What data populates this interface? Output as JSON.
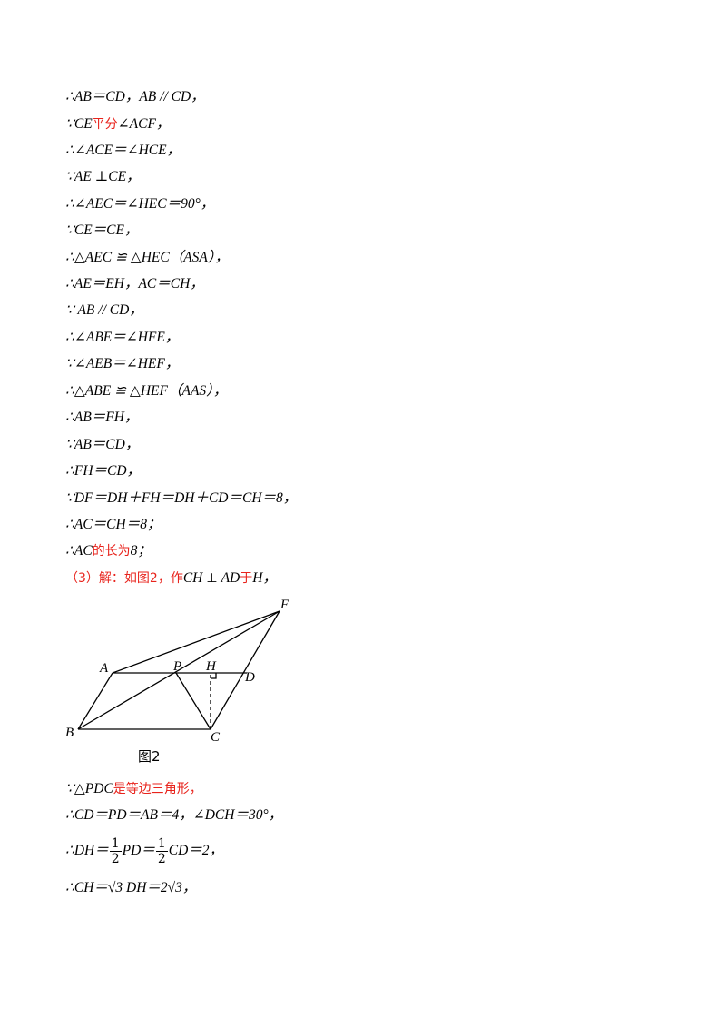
{
  "proof_lines": [
    {
      "parts": [
        "∴AB＝CD，AB // CD，"
      ]
    },
    {
      "parts": [
        "∵CE",
        "平分",
        "∠ACF，"
      ]
    },
    {
      "parts": [
        "∴∠ACE＝∠HCE，"
      ]
    },
    {
      "parts": [
        "∵AE ⊥CE，"
      ]
    },
    {
      "parts": [
        "∴∠AEC＝∠HEC＝90°，"
      ]
    },
    {
      "parts": [
        "∵CE＝CE，"
      ]
    },
    {
      "parts": [
        "∴△AEC ≌ △HEC（ASA），"
      ]
    },
    {
      "parts": [
        "∴AE＝EH，AC＝CH，"
      ]
    },
    {
      "parts": [
        "∵ AB // CD，"
      ]
    },
    {
      "parts": [
        "∴∠ABE＝∠HFE，"
      ]
    },
    {
      "parts": [
        "∵∠AEB＝∠HEF，"
      ]
    },
    {
      "parts": [
        "∴△ABE ≌ △HEF（AAS），"
      ]
    },
    {
      "parts": [
        "∴AB＝FH，"
      ]
    },
    {
      "parts": [
        "∵AB＝CD，"
      ]
    },
    {
      "parts": [
        "∴FH＝CD，"
      ]
    },
    {
      "parts": [
        "∵DF＝DH＋FH＝DH＋CD＝CH＝8，"
      ]
    },
    {
      "parts": [
        "∴AC＝CH＝8；"
      ]
    },
    {
      "parts": [
        "∴AC",
        "的长为",
        "8；"
      ]
    }
  ],
  "part3": {
    "label": "（3）解：如图2，作",
    "ch": "CH",
    "perp": "⊥",
    "ad": "AD",
    "yu": "于",
    "h": "H，"
  },
  "figure": {
    "caption": "图2",
    "points": {
      "A": "A",
      "B": "B",
      "C": "C",
      "D": "D",
      "P": "P",
      "H": "H",
      "F": "F"
    }
  },
  "after_figure": {
    "l1_a": "∵",
    "l1_b": "△PDC",
    "l1_c": "是等边三角形，",
    "l2": "∴CD＝PD＝AB＝4，∠DCH＝30°，",
    "l3_a": "∴DH＝",
    "l3_num": "1",
    "l3_den": "2",
    "l3_b": "PD＝",
    "l3_num2": "1",
    "l3_den2": "2",
    "l3_c": "CD＝2，",
    "l4": "∴CH＝√3 DH＝2√3，"
  }
}
